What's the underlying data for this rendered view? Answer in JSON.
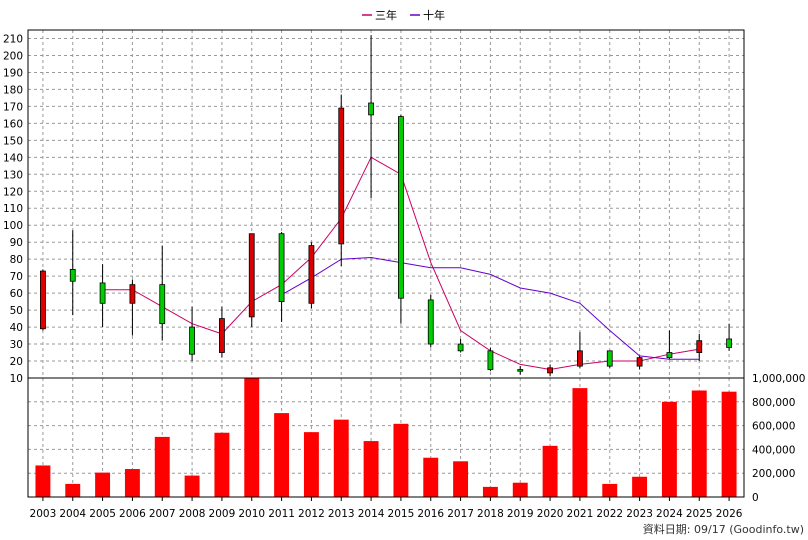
{
  "chart_data": [
    {
      "type": "candlestick",
      "legend_position": "top-center",
      "legend": [
        {
          "name": "三年",
          "color": "#cc0066"
        },
        {
          "name": "十年",
          "color": "#6600cc"
        }
      ],
      "years": [
        "2003",
        "2004",
        "2005",
        "2006",
        "2007",
        "2008",
        "2009",
        "2010",
        "2011",
        "2012",
        "2013",
        "2014",
        "2015",
        "2016",
        "2017",
        "2018",
        "2019",
        "2020",
        "2021",
        "2022",
        "2023",
        "2024",
        "2025",
        "2026"
      ],
      "ylim": [
        10,
        215
      ],
      "y_ticks": [
        "10",
        "20",
        "30",
        "40",
        "50",
        "60",
        "70",
        "80",
        "90",
        "100",
        "110",
        "120",
        "130",
        "140",
        "150",
        "160",
        "170",
        "180",
        "190",
        "200",
        "210"
      ],
      "grid": true,
      "candles": [
        {
          "open": 39,
          "close": 73,
          "high": 74,
          "low": 38,
          "color": "red"
        },
        {
          "open": 74,
          "close": 67,
          "high": 97,
          "low": 47,
          "color": "green"
        },
        {
          "open": 66,
          "close": 54,
          "high": 77,
          "low": 40,
          "color": "green"
        },
        {
          "open": 54,
          "close": 65,
          "high": 68,
          "low": 35,
          "color": "red"
        },
        {
          "open": 65,
          "close": 42,
          "high": 88,
          "low": 32,
          "color": "green"
        },
        {
          "open": 40,
          "close": 24,
          "high": 52,
          "low": 20,
          "color": "green"
        },
        {
          "open": 25,
          "close": 45,
          "high": 52,
          "low": 22,
          "color": "red"
        },
        {
          "open": 46,
          "close": 95,
          "high": 95,
          "low": 40,
          "color": "red"
        },
        {
          "open": 95,
          "close": 55,
          "high": 96,
          "low": 43,
          "color": "green"
        },
        {
          "open": 54,
          "close": 88,
          "high": 90,
          "low": 51,
          "color": "red"
        },
        {
          "open": 89,
          "close": 169,
          "high": 177,
          "low": 76,
          "color": "red"
        },
        {
          "open": 172,
          "close": 165,
          "high": 212,
          "low": 116,
          "color": "green"
        },
        {
          "open": 164,
          "close": 57,
          "high": 165,
          "low": 42,
          "color": "green"
        },
        {
          "open": 56,
          "close": 30,
          "high": 59,
          "low": 28,
          "color": "green"
        },
        {
          "open": 30,
          "close": 26,
          "high": 33,
          "low": 25,
          "color": "green"
        },
        {
          "open": 26,
          "close": 15,
          "high": 28,
          "low": 14,
          "color": "green"
        },
        {
          "open": 15,
          "close": 14,
          "high": 17,
          "low": 12,
          "color": "green"
        },
        {
          "open": 13,
          "close": 16,
          "high": 18,
          "low": 11,
          "color": "red"
        },
        {
          "open": 17,
          "close": 26,
          "high": 37,
          "low": 16,
          "color": "red"
        },
        {
          "open": 26,
          "close": 17,
          "high": 26,
          "low": 16,
          "color": "green"
        },
        {
          "open": 17,
          "close": 22,
          "high": 23,
          "low": 15,
          "color": "red"
        },
        {
          "open": 25,
          "close": 22,
          "high": 38,
          "low": 21,
          "color": "green"
        },
        {
          "open": 25,
          "close": 32,
          "high": 36,
          "low": 20,
          "color": "red"
        },
        {
          "open": 33,
          "close": 28,
          "high": 42,
          "low": 26,
          "color": "green"
        }
      ],
      "series": [
        {
          "name": "三年",
          "color": "#cc0066",
          "start_index": 1,
          "values": [
            null,
            62,
            62,
            52,
            42,
            36,
            55,
            65,
            81,
            104,
            140,
            130,
            78,
            38,
            26,
            18,
            15,
            18,
            20,
            20,
            24,
            27
          ]
        },
        {
          "name": "十年",
          "color": "#6600cc",
          "start_index": 8,
          "values": [
            59,
            69,
            80,
            81,
            78,
            75,
            75,
            71,
            63,
            60,
            54,
            38,
            23,
            21,
            21
          ]
        }
      ]
    },
    {
      "type": "bar",
      "categories": [
        "2003",
        "2004",
        "2005",
        "2006",
        "2007",
        "2008",
        "2009",
        "2010",
        "2011",
        "2012",
        "2013",
        "2014",
        "2015",
        "2016",
        "2017",
        "2018",
        "2019",
        "2020",
        "2021",
        "2022",
        "2023",
        "2024",
        "2025",
        "2026"
      ],
      "values": [
        265000,
        110000,
        205000,
        235000,
        505000,
        180000,
        540000,
        1000000,
        705000,
        545000,
        650000,
        470000,
        615000,
        330000,
        300000,
        85000,
        120000,
        430000,
        915000,
        110000,
        170000,
        800000,
        895000,
        885000
      ],
      "ylim": [
        0,
        1000000
      ],
      "y_ticks": [
        "0",
        "200,000",
        "400,000",
        "600,000",
        "800,000",
        "1,000,000"
      ],
      "color": "#ff0000",
      "grid": true
    }
  ],
  "source_label": "資料日期: 09/17 (Goodinfo.tw)"
}
